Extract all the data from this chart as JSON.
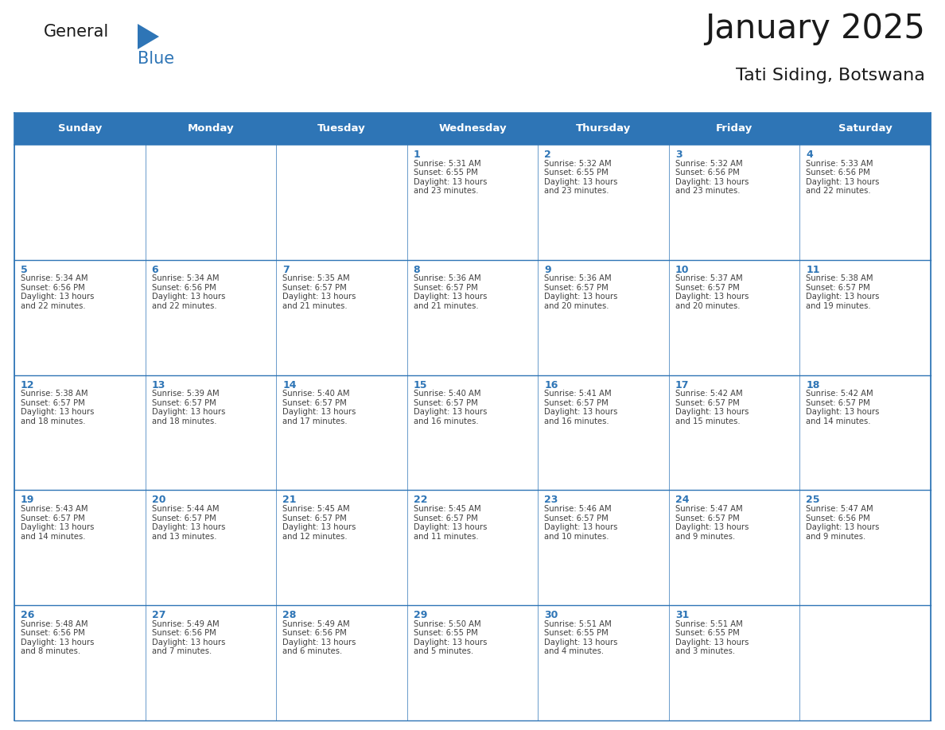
{
  "title": "January 2025",
  "subtitle": "Tati Siding, Botswana",
  "days_of_week": [
    "Sunday",
    "Monday",
    "Tuesday",
    "Wednesday",
    "Thursday",
    "Friday",
    "Saturday"
  ],
  "header_bg": "#2E75B6",
  "header_text": "#FFFFFF",
  "cell_bg": "#FFFFFF",
  "grid_line_color": "#2E75B6",
  "day_number_color": "#2E75B6",
  "text_color": "#404040",
  "title_color": "#1a1a1a",
  "logo_general_color": "#1a1a1a",
  "logo_blue_color": "#2E75B6",
  "calendar_data": [
    {
      "day": 1,
      "col": 3,
      "row": 0,
      "sunrise": "5:31 AM",
      "sunset": "6:55 PM",
      "daylight_h": "13 hours",
      "daylight_m": "and 23 minutes."
    },
    {
      "day": 2,
      "col": 4,
      "row": 0,
      "sunrise": "5:32 AM",
      "sunset": "6:55 PM",
      "daylight_h": "13 hours",
      "daylight_m": "and 23 minutes."
    },
    {
      "day": 3,
      "col": 5,
      "row": 0,
      "sunrise": "5:32 AM",
      "sunset": "6:56 PM",
      "daylight_h": "13 hours",
      "daylight_m": "and 23 minutes."
    },
    {
      "day": 4,
      "col": 6,
      "row": 0,
      "sunrise": "5:33 AM",
      "sunset": "6:56 PM",
      "daylight_h": "13 hours",
      "daylight_m": "and 22 minutes."
    },
    {
      "day": 5,
      "col": 0,
      "row": 1,
      "sunrise": "5:34 AM",
      "sunset": "6:56 PM",
      "daylight_h": "13 hours",
      "daylight_m": "and 22 minutes."
    },
    {
      "day": 6,
      "col": 1,
      "row": 1,
      "sunrise": "5:34 AM",
      "sunset": "6:56 PM",
      "daylight_h": "13 hours",
      "daylight_m": "and 22 minutes."
    },
    {
      "day": 7,
      "col": 2,
      "row": 1,
      "sunrise": "5:35 AM",
      "sunset": "6:57 PM",
      "daylight_h": "13 hours",
      "daylight_m": "and 21 minutes."
    },
    {
      "day": 8,
      "col": 3,
      "row": 1,
      "sunrise": "5:36 AM",
      "sunset": "6:57 PM",
      "daylight_h": "13 hours",
      "daylight_m": "and 21 minutes."
    },
    {
      "day": 9,
      "col": 4,
      "row": 1,
      "sunrise": "5:36 AM",
      "sunset": "6:57 PM",
      "daylight_h": "13 hours",
      "daylight_m": "and 20 minutes."
    },
    {
      "day": 10,
      "col": 5,
      "row": 1,
      "sunrise": "5:37 AM",
      "sunset": "6:57 PM",
      "daylight_h": "13 hours",
      "daylight_m": "and 20 minutes."
    },
    {
      "day": 11,
      "col": 6,
      "row": 1,
      "sunrise": "5:38 AM",
      "sunset": "6:57 PM",
      "daylight_h": "13 hours",
      "daylight_m": "and 19 minutes."
    },
    {
      "day": 12,
      "col": 0,
      "row": 2,
      "sunrise": "5:38 AM",
      "sunset": "6:57 PM",
      "daylight_h": "13 hours",
      "daylight_m": "and 18 minutes."
    },
    {
      "day": 13,
      "col": 1,
      "row": 2,
      "sunrise": "5:39 AM",
      "sunset": "6:57 PM",
      "daylight_h": "13 hours",
      "daylight_m": "and 18 minutes."
    },
    {
      "day": 14,
      "col": 2,
      "row": 2,
      "sunrise": "5:40 AM",
      "sunset": "6:57 PM",
      "daylight_h": "13 hours",
      "daylight_m": "and 17 minutes."
    },
    {
      "day": 15,
      "col": 3,
      "row": 2,
      "sunrise": "5:40 AM",
      "sunset": "6:57 PM",
      "daylight_h": "13 hours",
      "daylight_m": "and 16 minutes."
    },
    {
      "day": 16,
      "col": 4,
      "row": 2,
      "sunrise": "5:41 AM",
      "sunset": "6:57 PM",
      "daylight_h": "13 hours",
      "daylight_m": "and 16 minutes."
    },
    {
      "day": 17,
      "col": 5,
      "row": 2,
      "sunrise": "5:42 AM",
      "sunset": "6:57 PM",
      "daylight_h": "13 hours",
      "daylight_m": "and 15 minutes."
    },
    {
      "day": 18,
      "col": 6,
      "row": 2,
      "sunrise": "5:42 AM",
      "sunset": "6:57 PM",
      "daylight_h": "13 hours",
      "daylight_m": "and 14 minutes."
    },
    {
      "day": 19,
      "col": 0,
      "row": 3,
      "sunrise": "5:43 AM",
      "sunset": "6:57 PM",
      "daylight_h": "13 hours",
      "daylight_m": "and 14 minutes."
    },
    {
      "day": 20,
      "col": 1,
      "row": 3,
      "sunrise": "5:44 AM",
      "sunset": "6:57 PM",
      "daylight_h": "13 hours",
      "daylight_m": "and 13 minutes."
    },
    {
      "day": 21,
      "col": 2,
      "row": 3,
      "sunrise": "5:45 AM",
      "sunset": "6:57 PM",
      "daylight_h": "13 hours",
      "daylight_m": "and 12 minutes."
    },
    {
      "day": 22,
      "col": 3,
      "row": 3,
      "sunrise": "5:45 AM",
      "sunset": "6:57 PM",
      "daylight_h": "13 hours",
      "daylight_m": "and 11 minutes."
    },
    {
      "day": 23,
      "col": 4,
      "row": 3,
      "sunrise": "5:46 AM",
      "sunset": "6:57 PM",
      "daylight_h": "13 hours",
      "daylight_m": "and 10 minutes."
    },
    {
      "day": 24,
      "col": 5,
      "row": 3,
      "sunrise": "5:47 AM",
      "sunset": "6:57 PM",
      "daylight_h": "13 hours",
      "daylight_m": "and 9 minutes."
    },
    {
      "day": 25,
      "col": 6,
      "row": 3,
      "sunrise": "5:47 AM",
      "sunset": "6:56 PM",
      "daylight_h": "13 hours",
      "daylight_m": "and 9 minutes."
    },
    {
      "day": 26,
      "col": 0,
      "row": 4,
      "sunrise": "5:48 AM",
      "sunset": "6:56 PM",
      "daylight_h": "13 hours",
      "daylight_m": "and 8 minutes."
    },
    {
      "day": 27,
      "col": 1,
      "row": 4,
      "sunrise": "5:49 AM",
      "sunset": "6:56 PM",
      "daylight_h": "13 hours",
      "daylight_m": "and 7 minutes."
    },
    {
      "day": 28,
      "col": 2,
      "row": 4,
      "sunrise": "5:49 AM",
      "sunset": "6:56 PM",
      "daylight_h": "13 hours",
      "daylight_m": "and 6 minutes."
    },
    {
      "day": 29,
      "col": 3,
      "row": 4,
      "sunrise": "5:50 AM",
      "sunset": "6:55 PM",
      "daylight_h": "13 hours",
      "daylight_m": "and 5 minutes."
    },
    {
      "day": 30,
      "col": 4,
      "row": 4,
      "sunrise": "5:51 AM",
      "sunset": "6:55 PM",
      "daylight_h": "13 hours",
      "daylight_m": "and 4 minutes."
    },
    {
      "day": 31,
      "col": 5,
      "row": 4,
      "sunrise": "5:51 AM",
      "sunset": "6:55 PM",
      "daylight_h": "13 hours",
      "daylight_m": "and 3 minutes."
    }
  ]
}
